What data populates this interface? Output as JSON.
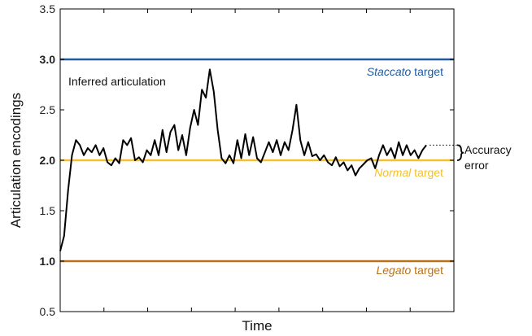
{
  "chart_data": {
    "type": "line",
    "xlabel": "Time",
    "ylabel": "Articulation encodings",
    "ylim": [
      0.5,
      3.5
    ],
    "yticks": [
      "0.5",
      "1.0",
      "1.5",
      "2.0",
      "2.5",
      "3.0",
      "3.5"
    ],
    "x_tick_count": 8,
    "grid": false,
    "targets": [
      {
        "value": 3.0,
        "tick_label": "3.0",
        "name_em": "Staccato",
        "name_rest": " target",
        "color": "#1f5aa0"
      },
      {
        "value": 2.0,
        "tick_label": "2.0",
        "name_em": "Normal",
        "name_rest": " target",
        "color": "#f2c12e"
      },
      {
        "value": 1.0,
        "tick_label": "1.0",
        "name_em": "Legato",
        "name_rest": " target",
        "color": "#b8731a"
      }
    ],
    "series": [
      {
        "name": "Inferred articulation",
        "color": "#000000",
        "x": [
          0.0,
          0.01,
          0.02,
          0.03,
          0.04,
          0.05,
          0.06,
          0.07,
          0.08,
          0.09,
          0.1,
          0.11,
          0.12,
          0.13,
          0.14,
          0.15,
          0.16,
          0.17,
          0.18,
          0.19,
          0.2,
          0.21,
          0.22,
          0.23,
          0.24,
          0.25,
          0.26,
          0.27,
          0.28,
          0.29,
          0.3,
          0.31,
          0.32,
          0.33,
          0.34,
          0.35,
          0.36,
          0.37,
          0.38,
          0.39,
          0.4,
          0.41,
          0.42,
          0.43,
          0.44,
          0.45,
          0.46,
          0.47,
          0.48,
          0.49,
          0.5,
          0.51,
          0.52,
          0.53,
          0.54,
          0.55,
          0.56,
          0.57,
          0.58,
          0.59,
          0.6,
          0.61,
          0.62,
          0.63,
          0.64,
          0.65,
          0.66,
          0.67,
          0.68,
          0.69,
          0.7,
          0.71,
          0.72,
          0.73,
          0.74,
          0.75,
          0.76,
          0.77,
          0.78,
          0.79,
          0.8,
          0.81,
          0.82,
          0.83,
          0.84,
          0.85,
          0.86,
          0.87,
          0.88,
          0.89,
          0.9,
          0.91,
          0.92,
          0.93
        ],
        "y": [
          1.1,
          1.25,
          1.7,
          2.05,
          2.2,
          2.15,
          2.05,
          2.12,
          2.08,
          2.15,
          2.05,
          2.12,
          1.98,
          1.95,
          2.02,
          1.97,
          2.2,
          2.15,
          2.22,
          2.0,
          2.03,
          1.98,
          2.1,
          2.05,
          2.2,
          2.05,
          2.3,
          2.08,
          2.28,
          2.35,
          2.1,
          2.25,
          2.05,
          2.32,
          2.5,
          2.35,
          2.7,
          2.62,
          2.9,
          2.68,
          2.3,
          2.02,
          1.97,
          2.05,
          1.97,
          2.2,
          2.02,
          2.26,
          2.05,
          2.23,
          2.02,
          1.98,
          2.08,
          2.18,
          2.08,
          2.2,
          2.05,
          2.18,
          2.1,
          2.3,
          2.55,
          2.2,
          2.05,
          2.18,
          2.04,
          2.06,
          2.0,
          2.05,
          1.98,
          1.95,
          2.03,
          1.94,
          1.98,
          1.9,
          1.95,
          1.85,
          1.92,
          1.96,
          2.0,
          2.02,
          1.92,
          2.05,
          2.15,
          2.05,
          2.12,
          2.02,
          2.18,
          2.05,
          2.15,
          2.05,
          2.1,
          2.02,
          2.1,
          2.15
        ]
      }
    ],
    "annotations": {
      "series_label": "Inferred articulation",
      "accuracy_line1": "Accuracy",
      "accuracy_line2": "error"
    }
  }
}
